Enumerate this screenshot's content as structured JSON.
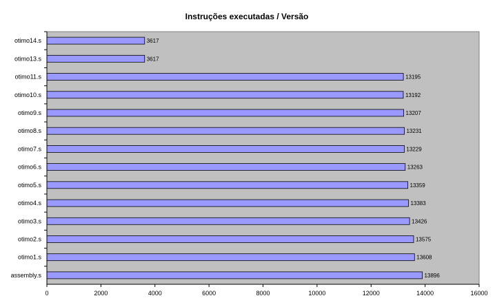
{
  "chart_data": {
    "type": "bar",
    "orientation": "horizontal",
    "title": "Instruções executadas / Versão",
    "xlabel": "",
    "ylabel": "",
    "xlim": [
      0,
      16000
    ],
    "xticks": [
      0,
      2000,
      4000,
      6000,
      8000,
      10000,
      12000,
      14000,
      16000
    ],
    "grid": false,
    "legend": "none",
    "categories": [
      "otimo14.s",
      "otimo13.s",
      "otimo11.s",
      "otimo10.s",
      "otimo9.s",
      "otimo8.s",
      "otimo7.s",
      "otimo6.s",
      "otimo5.s",
      "otimo4.s",
      "otimo3.s",
      "otimo2.s",
      "otimo1.s",
      "assembly.s"
    ],
    "values": [
      3617,
      3617,
      13195,
      13192,
      13207,
      13231,
      13229,
      13263,
      13359,
      13383,
      13426,
      13575,
      13608,
      13896
    ],
    "data_labels": [
      "3617",
      "3617",
      "13195",
      "13192",
      "13207",
      "13231",
      "13229",
      "13263",
      "13359",
      "13383",
      "13426",
      "13575",
      "13608",
      "13896"
    ],
    "colors": {
      "plot_background": "#c0c0c0",
      "bar_fill": "#9999ff",
      "bar_stroke": "#000000"
    }
  }
}
